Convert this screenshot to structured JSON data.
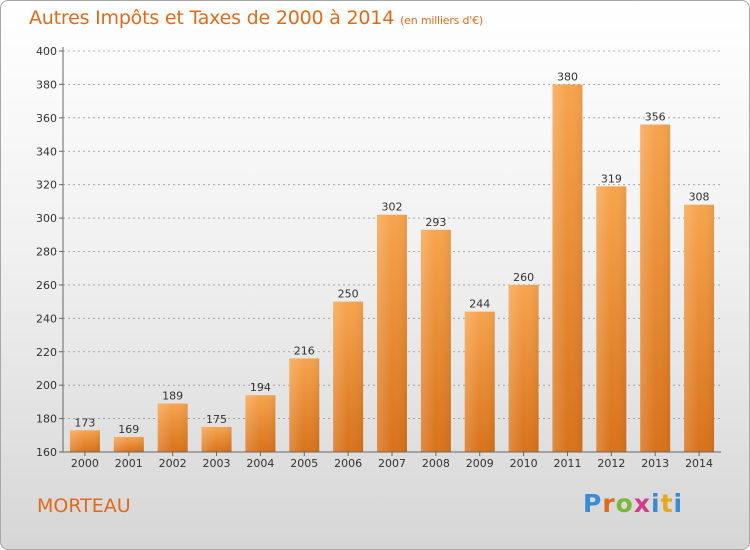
{
  "header": {
    "title": "Autres Impôts et Taxes de 2000 à 2014",
    "subtitle": "(en milliers d'€)"
  },
  "footer": {
    "city": "MORTEAU",
    "logo": [
      "P",
      "r",
      "o",
      "x",
      "i",
      "t",
      "i"
    ],
    "logo_colors": [
      "#3a8ad8",
      "#e06a1a",
      "#7ab83a",
      "#d43c8a",
      "#3a8ad8",
      "#e8a81e",
      "#3a8ad8"
    ]
  },
  "colors": {
    "bar_top": "#f7a44e",
    "bar_bottom": "#d8721a",
    "axis": "#666666",
    "grid": "#999999"
  },
  "chart_data": {
    "type": "bar",
    "title": "Autres Impôts et Taxes de 2000 à 2014",
    "xlabel": "",
    "ylabel": "",
    "ylim": [
      160,
      400
    ],
    "yticks": [
      160,
      180,
      200,
      220,
      240,
      260,
      280,
      300,
      320,
      340,
      360,
      380,
      400
    ],
    "grid": true,
    "categories": [
      "2000",
      "2001",
      "2002",
      "2003",
      "2004",
      "2005",
      "2006",
      "2007",
      "2008",
      "2009",
      "2010",
      "2011",
      "2012",
      "2013",
      "2014"
    ],
    "values": [
      173,
      169,
      189,
      175,
      194,
      216,
      250,
      302,
      293,
      244,
      260,
      380,
      319,
      356,
      308
    ]
  }
}
